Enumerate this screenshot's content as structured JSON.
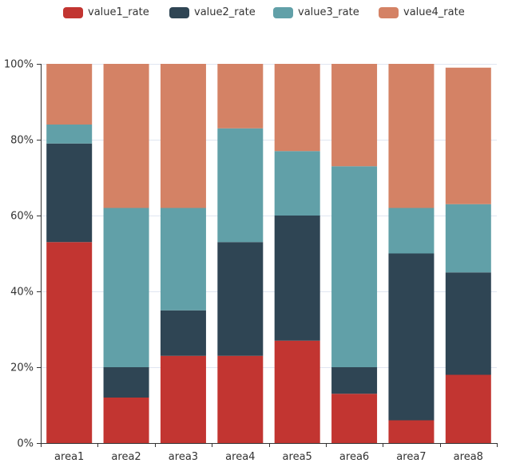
{
  "chart_data": {
    "type": "bar",
    "stacked": true,
    "categories": [
      "area1",
      "area2",
      "area3",
      "area4",
      "area5",
      "area6",
      "area7",
      "area8"
    ],
    "series": [
      {
        "name": "value1_rate",
        "color": "#c23531",
        "values": [
          53,
          12,
          23,
          23,
          27,
          13,
          6,
          18
        ]
      },
      {
        "name": "value2_rate",
        "color": "#2f4554",
        "values": [
          26,
          8,
          12,
          30,
          33,
          7,
          44,
          27
        ]
      },
      {
        "name": "value3_rate",
        "color": "#61a0a8",
        "values": [
          5,
          42,
          27,
          30,
          17,
          53,
          12,
          18
        ]
      },
      {
        "name": "value4_rate",
        "color": "#d48265",
        "values": [
          16,
          38,
          38,
          17,
          23,
          27,
          38,
          36
        ]
      }
    ],
    "yticks": [
      "0%",
      "20%",
      "40%",
      "60%",
      "80%",
      "100%"
    ],
    "ylim": [
      0,
      100
    ],
    "legend_position": "top-center",
    "grid": true
  }
}
